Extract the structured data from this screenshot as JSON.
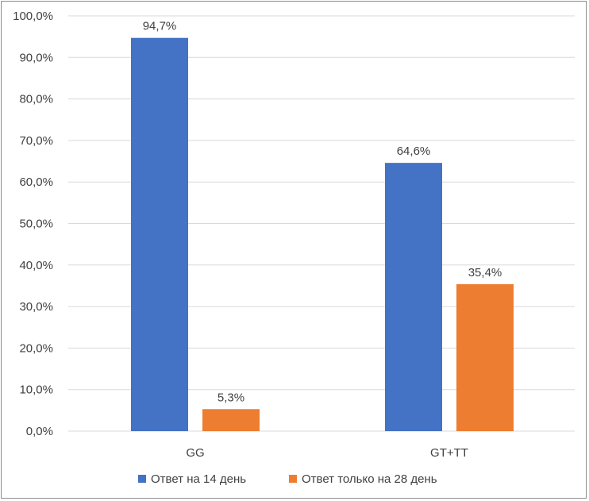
{
  "chart_data": {
    "type": "bar",
    "categories": [
      "GG",
      "GT+TT"
    ],
    "series": [
      {
        "name": "Ответ на 14 день",
        "values": [
          94.7,
          64.6
        ],
        "labels": [
          "94,7%",
          "64,6%"
        ],
        "color": "#4472c4"
      },
      {
        "name": "Ответ только на 28 день",
        "values": [
          5.3,
          35.4
        ],
        "labels": [
          "5,3%",
          "35,4%"
        ],
        "color": "#ed7d31"
      }
    ],
    "ylim": [
      0,
      100
    ],
    "yticks": [
      0,
      10,
      20,
      30,
      40,
      50,
      60,
      70,
      80,
      90,
      100
    ],
    "ytick_labels": [
      "0,0%",
      "10,0%",
      "20,0%",
      "30,0%",
      "40,0%",
      "50,0%",
      "60,0%",
      "70,0%",
      "80,0%",
      "90,0%",
      "100,0%"
    ],
    "grid": true,
    "legend_position": "bottom"
  }
}
